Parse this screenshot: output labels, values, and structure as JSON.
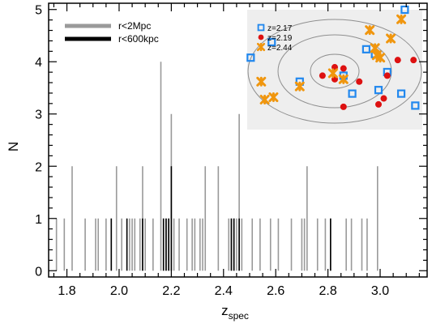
{
  "chart_data": [
    {
      "type": "bar",
      "xlabel": "z",
      "xlabel_subscript": "spec",
      "ylabel": "N",
      "xlim": [
        1.73,
        3.18
      ],
      "ylim": [
        -0.12,
        5.12
      ],
      "xticks": [
        "1.8",
        "2.0",
        "2.2",
        "2.4",
        "2.6",
        "2.8",
        "3.0"
      ],
      "yticks": [
        "0",
        "1",
        "2",
        "3",
        "4",
        "5"
      ],
      "grid": false,
      "legend_position": "top-left",
      "bin_width": 0.005,
      "series": [
        {
          "name": "r<2Mpc",
          "color": "#9a9a9a",
          "bins": [
            {
              "z": 1.76,
              "n": 1
            },
            {
              "z": 1.79,
              "n": 1
            },
            {
              "z": 1.82,
              "n": 2
            },
            {
              "z": 1.87,
              "n": 1
            },
            {
              "z": 1.91,
              "n": 1
            },
            {
              "z": 1.92,
              "n": 1
            },
            {
              "z": 1.95,
              "n": 1
            },
            {
              "z": 1.97,
              "n": 1
            },
            {
              "z": 1.99,
              "n": 2
            },
            {
              "z": 2.01,
              "n": 1
            },
            {
              "z": 2.04,
              "n": 1
            },
            {
              "z": 2.05,
              "n": 1
            },
            {
              "z": 2.06,
              "n": 1
            },
            {
              "z": 2.08,
              "n": 1
            },
            {
              "z": 2.09,
              "n": 2
            },
            {
              "z": 2.1,
              "n": 1
            },
            {
              "z": 2.13,
              "n": 1
            },
            {
              "z": 2.16,
              "n": 4
            },
            {
              "z": 2.17,
              "n": 1
            },
            {
              "z": 2.18,
              "n": 1
            },
            {
              "z": 2.19,
              "n": 1
            },
            {
              "z": 2.2,
              "n": 3
            },
            {
              "z": 2.21,
              "n": 1
            },
            {
              "z": 2.23,
              "n": 1
            },
            {
              "z": 2.26,
              "n": 1
            },
            {
              "z": 2.28,
              "n": 1
            },
            {
              "z": 2.29,
              "n": 1
            },
            {
              "z": 2.31,
              "n": 1
            },
            {
              "z": 2.32,
              "n": 1
            },
            {
              "z": 2.33,
              "n": 2
            },
            {
              "z": 2.38,
              "n": 2
            },
            {
              "z": 2.42,
              "n": 1
            },
            {
              "z": 2.43,
              "n": 1
            },
            {
              "z": 2.44,
              "n": 1
            },
            {
              "z": 2.45,
              "n": 1
            },
            {
              "z": 2.46,
              "n": 3
            },
            {
              "z": 2.47,
              "n": 1
            },
            {
              "z": 2.51,
              "n": 1
            },
            {
              "z": 2.54,
              "n": 1
            },
            {
              "z": 2.58,
              "n": 1
            },
            {
              "z": 2.61,
              "n": 1
            },
            {
              "z": 2.66,
              "n": 1
            },
            {
              "z": 2.7,
              "n": 1
            },
            {
              "z": 2.71,
              "n": 1
            },
            {
              "z": 2.72,
              "n": 2
            },
            {
              "z": 2.76,
              "n": 1
            },
            {
              "z": 2.79,
              "n": 1
            },
            {
              "z": 2.81,
              "n": 1
            },
            {
              "z": 2.87,
              "n": 1
            },
            {
              "z": 2.89,
              "n": 1
            },
            {
              "z": 2.93,
              "n": 1
            },
            {
              "z": 2.95,
              "n": 1
            },
            {
              "z": 2.99,
              "n": 2
            }
          ]
        },
        {
          "name": "r<600kpc",
          "color": "#000000",
          "bins": [
            {
              "z": 1.97,
              "n": 1
            },
            {
              "z": 2.03,
              "n": 1
            },
            {
              "z": 2.09,
              "n": 1
            },
            {
              "z": 2.17,
              "n": 1
            },
            {
              "z": 2.18,
              "n": 1
            },
            {
              "z": 2.19,
              "n": 1
            },
            {
              "z": 2.2,
              "n": 2
            },
            {
              "z": 2.43,
              "n": 1
            },
            {
              "z": 2.44,
              "n": 1
            },
            {
              "z": 2.46,
              "n": 1
            },
            {
              "z": 2.81,
              "n": 1
            }
          ]
        }
      ]
    },
    {
      "type": "scatter",
      "background": "#eeeeee",
      "rings_color": "#8f8f8f",
      "legend_position": "top-left",
      "series": [
        {
          "name": "z=2.17",
          "marker": "hollow-square",
          "color": "#2288ee",
          "points": [
            [
              0.02,
              0.6
            ],
            [
              0.14,
              0.73
            ],
            [
              0.3,
              0.4
            ],
            [
              0.55,
              0.45
            ],
            [
              0.6,
              0.3
            ],
            [
              0.75,
              0.33
            ],
            [
              0.88,
              0.3
            ],
            [
              0.8,
              0.48
            ],
            [
              0.73,
              0.63
            ],
            [
              0.68,
              0.67
            ],
            [
              0.9,
              1.0
            ],
            [
              0.96,
              0.2
            ]
          ]
        },
        {
          "name": "z=2.19",
          "marker": "filled-circle",
          "color": "#dd1111",
          "points": [
            [
              0.43,
              0.45
            ],
            [
              0.5,
              0.52
            ],
            [
              0.55,
              0.51
            ],
            [
              0.5,
              0.42
            ],
            [
              0.64,
              0.4
            ],
            [
              0.8,
              0.45
            ],
            [
              0.86,
              0.58
            ],
            [
              0.95,
              0.58
            ],
            [
              0.78,
              0.26
            ],
            [
              0.75,
              0.21
            ],
            [
              0.55,
              0.19
            ]
          ]
        },
        {
          "name": "z=2.44",
          "marker": "asterisk",
          "color": "#f0960e",
          "points": [
            [
              0.08,
              0.4
            ],
            [
              0.1,
              0.25
            ],
            [
              0.15,
              0.27
            ],
            [
              0.3,
              0.36
            ],
            [
              0.49,
              0.47
            ],
            [
              0.55,
              0.42
            ],
            [
              0.7,
              0.83
            ],
            [
              0.74,
              0.62
            ],
            [
              0.82,
              0.76
            ],
            [
              0.76,
              0.6
            ],
            [
              0.88,
              0.92
            ],
            [
              0.73,
              0.68
            ]
          ]
        }
      ]
    }
  ]
}
